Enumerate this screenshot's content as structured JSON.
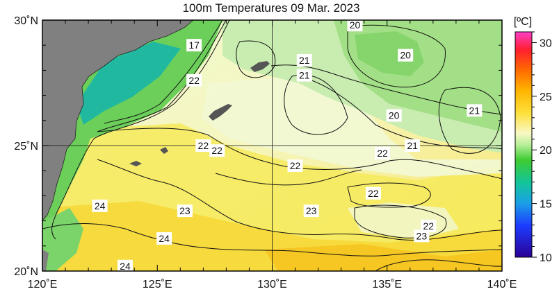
{
  "title": "100m Temperatures  09 Mar. 2023",
  "colorbar": {
    "unit": "[ºC]",
    "ticks": [
      10,
      15,
      20,
      25,
      30
    ],
    "range": [
      10,
      31
    ]
  },
  "map": {
    "lon_range": [
      120,
      140
    ],
    "lat_range": [
      20,
      30
    ],
    "lon_ticks": [
      {
        "value": 120,
        "label": "120˚E"
      },
      {
        "value": 125,
        "label": "125˚E"
      },
      {
        "value": 130,
        "label": "130˚E"
      },
      {
        "value": 135,
        "label": "135˚E"
      },
      {
        "value": 140,
        "label": "140˚E"
      }
    ],
    "lat_ticks": [
      {
        "value": 20,
        "label": "20˚N"
      },
      {
        "value": 25,
        "label": "25˚N"
      },
      {
        "value": 30,
        "label": "30˚N"
      }
    ],
    "grid_lines": [
      {
        "axis": "lat",
        "value": 25
      },
      {
        "axis": "lon",
        "value": 130
      }
    ],
    "contour_labels": [
      {
        "text": "17",
        "lon": 126.6,
        "lat": 29.0
      },
      {
        "text": "20",
        "lon": 133.6,
        "lat": 29.8
      },
      {
        "text": "20",
        "lon": 135.8,
        "lat": 28.6
      },
      {
        "text": "21",
        "lon": 131.4,
        "lat": 28.4
      },
      {
        "text": "21",
        "lon": 131.4,
        "lat": 27.8
      },
      {
        "text": "22",
        "lon": 126.6,
        "lat": 27.6
      },
      {
        "text": "20",
        "lon": 135.3,
        "lat": 26.2
      },
      {
        "text": "21",
        "lon": 138.8,
        "lat": 26.4
      },
      {
        "text": "21",
        "lon": 136.1,
        "lat": 25.0
      },
      {
        "text": "22",
        "lon": 127.0,
        "lat": 25.0
      },
      {
        "text": "22",
        "lon": 127.6,
        "lat": 24.8
      },
      {
        "text": "22",
        "lon": 134.8,
        "lat": 24.7
      },
      {
        "text": "22",
        "lon": 131.0,
        "lat": 24.2
      },
      {
        "text": "22",
        "lon": 134.4,
        "lat": 23.1
      },
      {
        "text": "24",
        "lon": 122.5,
        "lat": 22.6
      },
      {
        "text": "23",
        "lon": 126.2,
        "lat": 22.4
      },
      {
        "text": "23",
        "lon": 131.7,
        "lat": 22.4
      },
      {
        "text": "22",
        "lon": 136.8,
        "lat": 21.8
      },
      {
        "text": "23",
        "lon": 136.5,
        "lat": 21.4
      },
      {
        "text": "24",
        "lon": 125.3,
        "lat": 21.3
      },
      {
        "text": "24",
        "lon": 123.6,
        "lat": 20.2
      }
    ]
  }
}
